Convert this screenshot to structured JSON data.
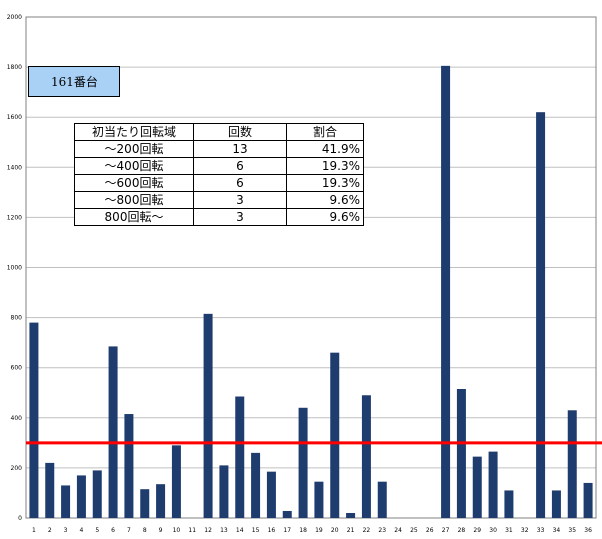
{
  "chart_data": {
    "type": "bar",
    "categories": [
      "1",
      "2",
      "3",
      "4",
      "5",
      "6",
      "7",
      "8",
      "9",
      "10",
      "11",
      "12",
      "13",
      "14",
      "15",
      "16",
      "17",
      "18",
      "19",
      "20",
      "21",
      "22",
      "23",
      "24",
      "25",
      "26",
      "27",
      "28",
      "29",
      "30",
      "31",
      "32",
      "33",
      "34",
      "35",
      "36"
    ],
    "values": [
      780,
      220,
      130,
      170,
      190,
      685,
      415,
      115,
      135,
      290,
      0,
      815,
      210,
      485,
      260,
      185,
      28,
      440,
      145,
      660,
      20,
      490,
      145,
      0,
      0,
      0,
      1805,
      515,
      245,
      265,
      110,
      0,
      1620,
      110,
      430,
      140
    ],
    "ylim": [
      0,
      2000
    ],
    "yticks": [
      0,
      200,
      400,
      600,
      800,
      1000,
      1200,
      1400,
      1600,
      1800,
      2000
    ],
    "reference_line": 300,
    "grid": true,
    "colors": {
      "bar": "#1f3c6e",
      "line": "#ff0000",
      "grid": "#c0c0c0"
    }
  },
  "label_box": {
    "text": "161番台"
  },
  "stats_table": {
    "headers": [
      "初当たり回転域",
      "回数",
      "割合"
    ],
    "rows": [
      [
        "～200回転",
        "13",
        "41.9%"
      ],
      [
        "～400回転",
        "6",
        "19.3%"
      ],
      [
        "～600回転",
        "6",
        "19.3%"
      ],
      [
        "～800回転",
        "3",
        "9.6%"
      ],
      [
        "800回転～",
        "3",
        "9.6%"
      ]
    ]
  }
}
